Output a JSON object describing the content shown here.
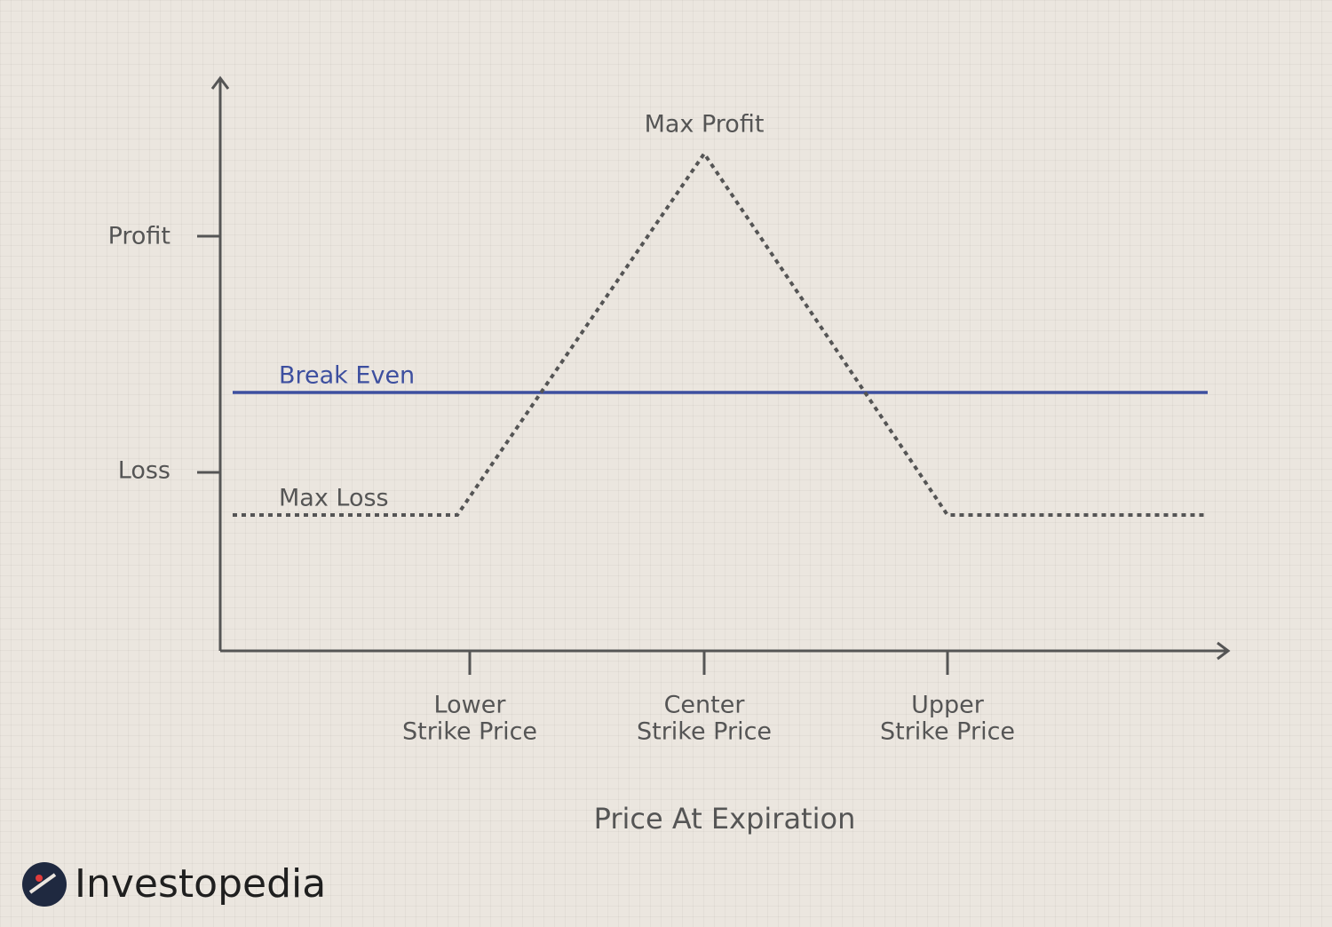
{
  "annotations": {
    "peak": "Max Profit",
    "break_even": "Break Even",
    "trough": "Max Loss"
  },
  "y_axis": {
    "labels": [
      "Profit",
      "Loss"
    ]
  },
  "x_axis": {
    "labels": [
      [
        "Lower",
        "Strike Price"
      ],
      [
        "Center",
        "Strike Price"
      ],
      [
        "Upper",
        "Strike Price"
      ]
    ],
    "title": "Price At Expiration"
  },
  "brand": "Investopedia"
}
